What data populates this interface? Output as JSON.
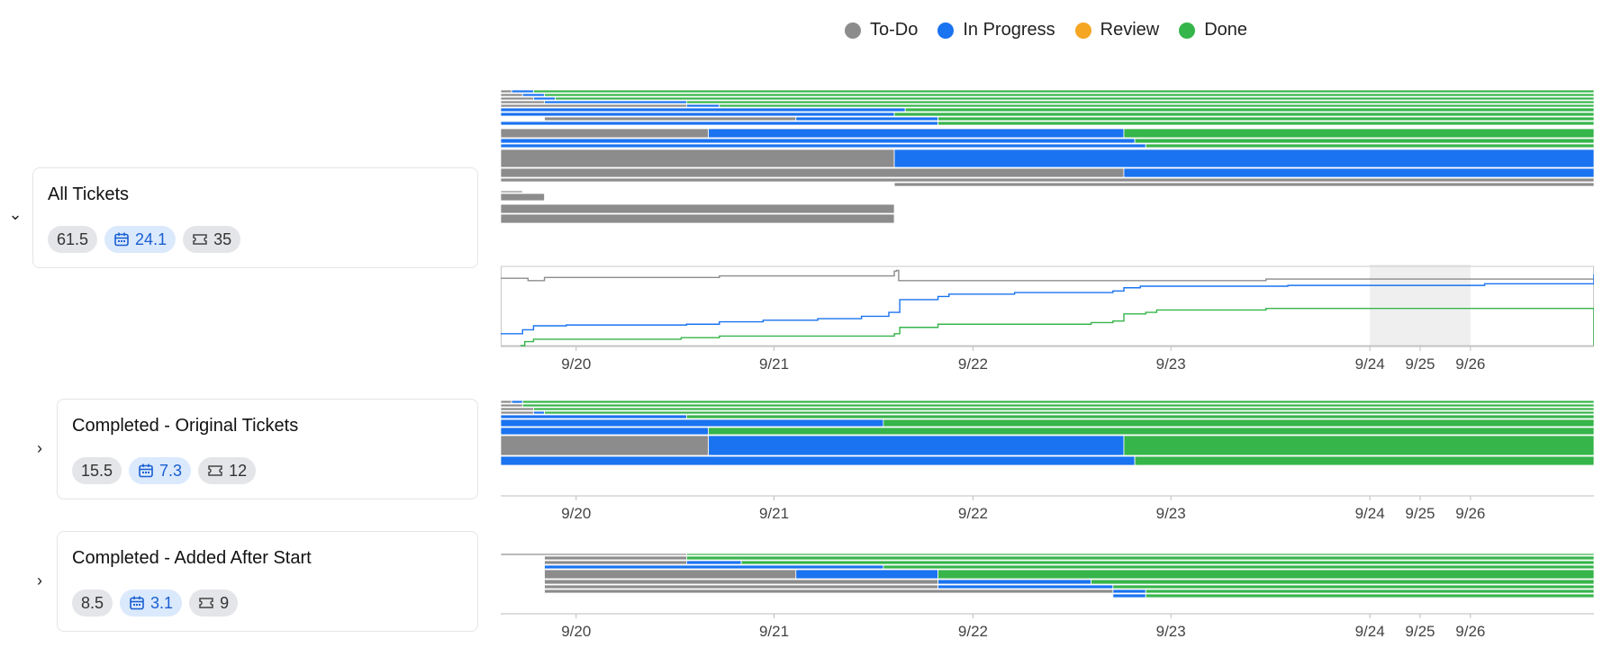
{
  "legend": [
    {
      "label": "To-Do",
      "color": "#8c8c8c"
    },
    {
      "label": "In Progress",
      "color": "#1a73f0"
    },
    {
      "label": "Review",
      "color": "#f5a623"
    },
    {
      "label": "Done",
      "color": "#36b54a"
    }
  ],
  "groups": [
    {
      "title": "All Tickets",
      "points": "61.5",
      "days": "24.1",
      "tickets": "35",
      "expanded": true,
      "rows": [
        {
          "h": 3,
          "segs": [
            [
              0.0,
              0.01,
              "todo"
            ],
            [
              0.01,
              0.03,
              "prog"
            ],
            [
              0.03,
              1.0,
              "done"
            ]
          ]
        },
        {
          "h": 3,
          "segs": [
            [
              0.0,
              0.02,
              "todo"
            ],
            [
              0.02,
              0.04,
              "prog"
            ],
            [
              0.04,
              1.0,
              "done"
            ]
          ]
        },
        {
          "h": 3,
          "segs": [
            [
              0.0,
              0.03,
              "todo"
            ],
            [
              0.03,
              0.05,
              "prog"
            ],
            [
              0.05,
              1.0,
              "done"
            ]
          ]
        },
        {
          "h": 3,
          "segs": [
            [
              0.0,
              0.04,
              "todo"
            ],
            [
              0.04,
              0.17,
              "prog"
            ],
            [
              0.17,
              1.0,
              "done"
            ]
          ]
        },
        {
          "h": 3,
          "segs": [
            [
              0.0,
              0.17,
              "todo"
            ],
            [
              0.17,
              0.2,
              "prog"
            ],
            [
              0.2,
              1.0,
              "done"
            ]
          ]
        },
        {
          "h": 4,
          "segs": [
            [
              0.0,
              0.37,
              "prog"
            ],
            [
              0.37,
              1.0,
              "done"
            ]
          ]
        },
        {
          "h": 4,
          "segs": [
            [
              0.0,
              0.36,
              "prog"
            ],
            [
              0.36,
              1.0,
              "done"
            ]
          ]
        },
        {
          "h": 4,
          "segs": [
            [
              0.04,
              0.27,
              "todo"
            ],
            [
              0.27,
              0.4,
              "prog"
            ],
            [
              0.4,
              1.0,
              "done"
            ]
          ]
        },
        {
          "h": 4,
          "segs": [
            [
              0.0,
              0.4,
              "prog"
            ],
            [
              0.4,
              1.0,
              "done"
            ]
          ]
        },
        {
          "gap": 3
        },
        {
          "h": 10,
          "segs": [
            [
              0.0,
              0.19,
              "todo"
            ],
            [
              0.19,
              0.57,
              "prog"
            ],
            [
              0.57,
              1.0,
              "done"
            ]
          ]
        },
        {
          "h": 5,
          "segs": [
            [
              0.0,
              0.58,
              "prog"
            ],
            [
              0.58,
              1.0,
              "done"
            ]
          ]
        },
        {
          "h": 4,
          "segs": [
            [
              0.0,
              0.59,
              "prog"
            ],
            [
              0.59,
              1.0,
              "done"
            ]
          ]
        },
        {
          "gap": 1
        },
        {
          "h": 20,
          "segs": [
            [
              0.0,
              0.36,
              "todo"
            ],
            [
              0.36,
              1.0,
              "prog"
            ]
          ]
        },
        {
          "h": 10,
          "segs": [
            [
              0.0,
              0.57,
              "todo"
            ],
            [
              0.57,
              1.0,
              "prog"
            ]
          ]
        },
        {
          "h": 4,
          "segs": [
            [
              0.0,
              1.0,
              "todo"
            ]
          ]
        },
        {
          "h": 4,
          "segs": [
            [
              0.36,
              1.0,
              "todo"
            ]
          ]
        },
        {
          "gap": 4
        },
        {
          "h": 2,
          "segs": [
            [
              0.0,
              0.02,
              "todo"
            ]
          ]
        },
        {
          "h": 8,
          "segs": [
            [
              0.0,
              0.04,
              "todo"
            ]
          ]
        },
        {
          "gap": 3
        },
        {
          "h": 10,
          "segs": [
            [
              0.0,
              0.36,
              "todo"
            ]
          ]
        },
        {
          "h": 10,
          "segs": [
            [
              0.0,
              0.36,
              "todo"
            ]
          ]
        }
      ],
      "cumulative": [
        {
          "state": "todo",
          "points": [
            [
              0.0,
              0.15
            ],
            [
              0.02,
              0.15
            ],
            [
              0.025,
              0.18
            ],
            [
              0.04,
              0.14
            ],
            [
              0.2,
              0.12
            ],
            [
              0.36,
              0.06
            ],
            [
              0.362,
              0.05
            ],
            [
              0.364,
              0.18
            ],
            [
              0.7,
              0.16
            ],
            [
              1.0,
              0.16
            ]
          ]
        },
        {
          "state": "prog",
          "points": [
            [
              0.0,
              0.85
            ],
            [
              0.02,
              0.8
            ],
            [
              0.03,
              0.75
            ],
            [
              0.06,
              0.74
            ],
            [
              0.17,
              0.73
            ],
            [
              0.2,
              0.7
            ],
            [
              0.24,
              0.68
            ],
            [
              0.29,
              0.66
            ],
            [
              0.33,
              0.63
            ],
            [
              0.355,
              0.58
            ],
            [
              0.365,
              0.42
            ],
            [
              0.4,
              0.38
            ],
            [
              0.41,
              0.35
            ],
            [
              0.47,
              0.33
            ],
            [
              0.56,
              0.31
            ],
            [
              0.57,
              0.27
            ],
            [
              0.585,
              0.25
            ],
            [
              0.72,
              0.24
            ],
            [
              0.9,
              0.22
            ],
            [
              0.997,
              0.22
            ],
            [
              1.0,
              0.1
            ]
          ]
        },
        {
          "state": "done",
          "points": [
            [
              0.018,
              1.0
            ],
            [
              0.022,
              0.95
            ],
            [
              0.03,
              0.92
            ],
            [
              0.06,
              0.92
            ],
            [
              0.165,
              0.9
            ],
            [
              0.2,
              0.88
            ],
            [
              0.36,
              0.85
            ],
            [
              0.365,
              0.77
            ],
            [
              0.4,
              0.73
            ],
            [
              0.54,
              0.71
            ],
            [
              0.56,
              0.69
            ],
            [
              0.57,
              0.6
            ],
            [
              0.59,
              0.58
            ],
            [
              0.6,
              0.55
            ],
            [
              0.7,
              0.53
            ],
            [
              0.997,
              0.53
            ],
            [
              1.0,
              1.0
            ]
          ]
        }
      ]
    },
    {
      "title": "Completed - Original Tickets",
      "points": "15.5",
      "days": "7.3",
      "tickets": "12",
      "expanded": false,
      "rows": [
        {
          "h": 3,
          "segs": [
            [
              0.0,
              0.01,
              "todo"
            ],
            [
              0.01,
              0.02,
              "prog"
            ],
            [
              0.02,
              1.0,
              "done"
            ]
          ]
        },
        {
          "h": 3,
          "segs": [
            [
              0.0,
              0.02,
              "todo"
            ],
            [
              0.02,
              1.0,
              "done"
            ]
          ]
        },
        {
          "h": 3,
          "segs": [
            [
              0.0,
              0.03,
              "todo"
            ],
            [
              0.03,
              1.0,
              "done"
            ]
          ]
        },
        {
          "h": 3,
          "segs": [
            [
              0.0,
              0.03,
              "todo"
            ],
            [
              0.03,
              0.04,
              "prog"
            ],
            [
              0.04,
              1.0,
              "done"
            ]
          ]
        },
        {
          "h": 4,
          "segs": [
            [
              0.0,
              0.17,
              "prog"
            ],
            [
              0.17,
              1.0,
              "done"
            ]
          ]
        },
        {
          "h": 8,
          "segs": [
            [
              0.0,
              0.35,
              "prog"
            ],
            [
              0.35,
              1.0,
              "done"
            ]
          ]
        },
        {
          "h": 8,
          "segs": [
            [
              0.0,
              0.19,
              "prog"
            ],
            [
              0.19,
              1.0,
              "done"
            ]
          ]
        },
        {
          "h": 22,
          "segs": [
            [
              0.0,
              0.19,
              "todo"
            ],
            [
              0.19,
              0.57,
              "prog"
            ],
            [
              0.57,
              1.0,
              "done"
            ]
          ]
        },
        {
          "h": 10,
          "segs": [
            [
              0.0,
              0.58,
              "prog"
            ],
            [
              0.58,
              1.0,
              "done"
            ]
          ]
        }
      ]
    },
    {
      "title": "Completed - Added After Start",
      "points": "8.5",
      "days": "3.1",
      "tickets": "9",
      "expanded": false,
      "rows": [
        {
          "h": 2,
          "segs": [
            [
              0.0,
              0.17,
              "todo"
            ],
            [
              0.17,
              1.0,
              "done"
            ]
          ]
        },
        {
          "h": 4,
          "segs": [
            [
              0.04,
              0.17,
              "todo"
            ],
            [
              0.17,
              1.0,
              "done"
            ]
          ]
        },
        {
          "h": 4,
          "segs": [
            [
              0.04,
              0.17,
              "todo"
            ],
            [
              0.17,
              0.22,
              "prog"
            ],
            [
              0.22,
              1.0,
              "done"
            ]
          ]
        },
        {
          "h": 4,
          "segs": [
            [
              0.04,
              0.35,
              "prog"
            ],
            [
              0.35,
              1.0,
              "done"
            ]
          ]
        },
        {
          "h": 10,
          "segs": [
            [
              0.04,
              0.27,
              "todo"
            ],
            [
              0.27,
              0.4,
              "prog"
            ],
            [
              0.4,
              1.0,
              "done"
            ]
          ]
        },
        {
          "h": 5,
          "segs": [
            [
              0.04,
              0.4,
              "todo"
            ],
            [
              0.4,
              0.54,
              "prog"
            ],
            [
              0.54,
              1.0,
              "done"
            ]
          ]
        },
        {
          "h": 4,
          "segs": [
            [
              0.04,
              0.4,
              "todo"
            ],
            [
              0.4,
              0.56,
              "prog"
            ],
            [
              0.56,
              1.0,
              "done"
            ]
          ]
        },
        {
          "h": 4,
          "segs": [
            [
              0.04,
              0.56,
              "todo"
            ],
            [
              0.56,
              0.59,
              "prog"
            ],
            [
              0.59,
              1.0,
              "done"
            ]
          ]
        },
        {
          "h": 4,
          "segs": [
            [
              0.56,
              0.59,
              "prog"
            ],
            [
              0.59,
              1.0,
              "done"
            ]
          ]
        }
      ]
    }
  ],
  "axis": {
    "ticks": [
      {
        "label": "9/20",
        "f": 0.069
      },
      {
        "label": "9/21",
        "f": 0.25
      },
      {
        "label": "9/22",
        "f": 0.432
      },
      {
        "label": "9/23",
        "f": 0.613
      },
      {
        "label": "9/24",
        "f": 0.795
      },
      {
        "label": "9/25",
        "f": 0.841
      },
      {
        "label": "9/26",
        "f": 0.887
      }
    ],
    "weekend": [
      0.795,
      0.887
    ]
  },
  "colors": {
    "todo": "#8c8c8c",
    "prog": "#1a73f0",
    "review": "#f5a623",
    "done": "#36b54a"
  }
}
